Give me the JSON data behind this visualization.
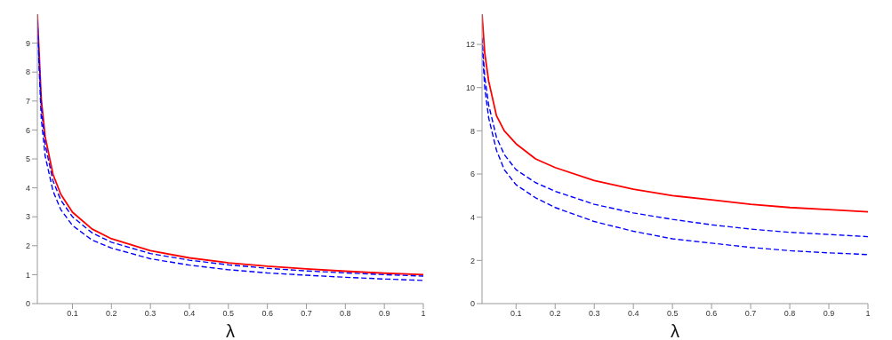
{
  "chart_data": [
    {
      "type": "line",
      "xlabel": "λ",
      "xlim": [
        0.01,
        1
      ],
      "xticks": [
        0.1,
        0.2,
        0.3,
        0.4,
        0.5,
        0.6,
        0.7,
        0.8,
        0.9,
        1
      ],
      "ylim": [
        0,
        10
      ],
      "yticks": [
        0,
        1,
        2,
        3,
        4,
        5,
        6,
        7,
        8,
        9
      ],
      "x": [
        0.01,
        0.02,
        0.03,
        0.05,
        0.07,
        0.1,
        0.15,
        0.2,
        0.3,
        0.4,
        0.5,
        0.6,
        0.7,
        0.8,
        0.9,
        1
      ],
      "series": [
        {
          "color": "#ff0000",
          "line_style": "solid",
          "values": [
            10,
            7.07,
            5.77,
            4.47,
            3.78,
            3.16,
            2.58,
            2.24,
            1.83,
            1.58,
            1.41,
            1.29,
            1.2,
            1.12,
            1.05,
            1.0
          ]
        },
        {
          "color": "#0000ff",
          "line_style": "dashed",
          "values": [
            9.8,
            6.8,
            5.5,
            4.25,
            3.58,
            3.0,
            2.45,
            2.12,
            1.73,
            1.5,
            1.34,
            1.22,
            1.13,
            1.06,
            1.0,
            0.95
          ]
        },
        {
          "color": "#0000ff",
          "line_style": "dashed",
          "values": [
            9.6,
            6.4,
            5.1,
            3.9,
            3.25,
            2.7,
            2.2,
            1.92,
            1.55,
            1.33,
            1.17,
            1.06,
            0.98,
            0.91,
            0.85,
            0.8
          ]
        }
      ]
    },
    {
      "type": "line",
      "xlabel": "λ",
      "xlim": [
        0.013,
        1
      ],
      "xticks": [
        0.1,
        0.2,
        0.3,
        0.4,
        0.5,
        0.6,
        0.7,
        0.8,
        0.9,
        1
      ],
      "ylim": [
        0,
        13.4
      ],
      "yticks": [
        0,
        2,
        4,
        6,
        8,
        10,
        12
      ],
      "x": [
        0.013,
        0.02,
        0.03,
        0.05,
        0.07,
        0.1,
        0.15,
        0.2,
        0.3,
        0.4,
        0.5,
        0.6,
        0.7,
        0.8,
        0.9,
        1
      ],
      "series": [
        {
          "color": "#ff0000",
          "line_style": "solid",
          "values": [
            13.4,
            11.6,
            10.3,
            8.7,
            8.0,
            7.4,
            6.7,
            6.3,
            5.7,
            5.3,
            5.0,
            4.8,
            4.6,
            4.45,
            4.35,
            4.25
          ]
        },
        {
          "color": "#0000ff",
          "line_style": "dashed",
          "values": [
            12.3,
            10.5,
            9.2,
            7.7,
            6.9,
            6.2,
            5.6,
            5.2,
            4.6,
            4.2,
            3.9,
            3.65,
            3.45,
            3.3,
            3.2,
            3.1
          ]
        },
        {
          "color": "#0000ff",
          "line_style": "dashed",
          "values": [
            12.0,
            10.0,
            8.6,
            7.1,
            6.2,
            5.5,
            4.9,
            4.45,
            3.8,
            3.35,
            3.0,
            2.8,
            2.6,
            2.45,
            2.35,
            2.27
          ]
        }
      ]
    }
  ]
}
